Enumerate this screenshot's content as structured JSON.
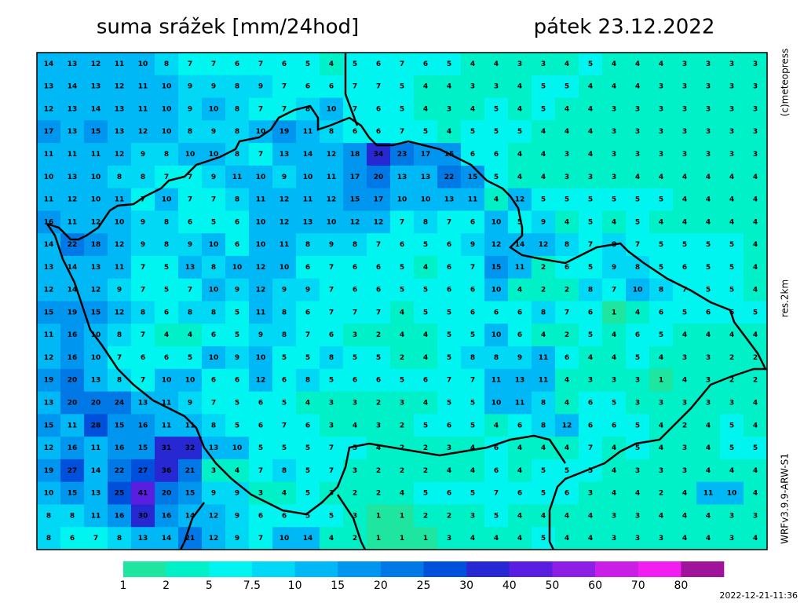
{
  "header": {
    "title": "suma srážek [mm/24hod]",
    "date": "pátek 23.12.2022"
  },
  "side_labels": {
    "credit": "(c)meteopress",
    "resolution": "res.2km",
    "model": "WRFv3.9.9-ARW-S1"
  },
  "grid": {
    "rows": [
      [
        14,
        13,
        12,
        11,
        10,
        8,
        7,
        7,
        6,
        7,
        6,
        5,
        4,
        5,
        6,
        7,
        6,
        5,
        4,
        4,
        3,
        3,
        4,
        5,
        4,
        4,
        4,
        3,
        3,
        3,
        3
      ],
      [
        13,
        14,
        13,
        12,
        11,
        10,
        9,
        9,
        8,
        9,
        7,
        6,
        6,
        7,
        7,
        5,
        4,
        4,
        3,
        3,
        4,
        5,
        5,
        4,
        4,
        4,
        3,
        3,
        3,
        3,
        3
      ],
      [
        12,
        13,
        14,
        13,
        11,
        10,
        9,
        10,
        8,
        7,
        7,
        8,
        10,
        7,
        6,
        5,
        4,
        3,
        4,
        5,
        4,
        5,
        4,
        4,
        3,
        3,
        3,
        3,
        3,
        3,
        3
      ],
      [
        17,
        13,
        15,
        13,
        12,
        10,
        8,
        9,
        8,
        10,
        19,
        11,
        8,
        6,
        6,
        7,
        5,
        4,
        5,
        5,
        5,
        4,
        4,
        4,
        3,
        3,
        3,
        3,
        3,
        3,
        3
      ],
      [
        11,
        11,
        11,
        12,
        9,
        8,
        10,
        10,
        8,
        7,
        13,
        14,
        12,
        18,
        34,
        23,
        17,
        15,
        6,
        6,
        4,
        4,
        3,
        4,
        3,
        3,
        3,
        3,
        3,
        3,
        3
      ],
      [
        10,
        13,
        10,
        8,
        8,
        7,
        7,
        9,
        11,
        10,
        9,
        10,
        11,
        17,
        20,
        13,
        13,
        22,
        15,
        5,
        4,
        4,
        3,
        3,
        3,
        4,
        4,
        4,
        4,
        4,
        4
      ],
      [
        11,
        12,
        10,
        11,
        7,
        10,
        7,
        7,
        8,
        11,
        12,
        11,
        12,
        15,
        17,
        10,
        10,
        13,
        11,
        4,
        12,
        5,
        5,
        5,
        5,
        5,
        5,
        4,
        4,
        4,
        4
      ],
      [
        16,
        11,
        12,
        10,
        9,
        8,
        6,
        5,
        6,
        10,
        12,
        13,
        10,
        12,
        12,
        7,
        8,
        7,
        6,
        10,
        5,
        9,
        4,
        5,
        4,
        5,
        4,
        4,
        4,
        4,
        4
      ],
      [
        14,
        22,
        18,
        12,
        9,
        8,
        9,
        10,
        6,
        10,
        11,
        8,
        9,
        8,
        7,
        6,
        5,
        6,
        9,
        12,
        14,
        12,
        8,
        7,
        8,
        7,
        5,
        5,
        5,
        5,
        4
      ],
      [
        13,
        14,
        13,
        11,
        7,
        5,
        13,
        8,
        10,
        12,
        10,
        6,
        7,
        6,
        6,
        5,
        4,
        6,
        7,
        15,
        11,
        2,
        6,
        5,
        9,
        8,
        5,
        6,
        5,
        5,
        4
      ],
      [
        12,
        14,
        12,
        9,
        7,
        5,
        7,
        10,
        9,
        12,
        9,
        9,
        7,
        6,
        6,
        5,
        5,
        6,
        6,
        10,
        4,
        2,
        2,
        8,
        7,
        10,
        8,
        7,
        5,
        5,
        4
      ],
      [
        15,
        19,
        15,
        12,
        8,
        6,
        8,
        8,
        5,
        11,
        8,
        6,
        7,
        7,
        7,
        4,
        5,
        5,
        6,
        6,
        6,
        8,
        7,
        6,
        1,
        4,
        6,
        5,
        6,
        6,
        5
      ],
      [
        11,
        16,
        10,
        8,
        7,
        4,
        4,
        6,
        5,
        9,
        8,
        7,
        6,
        3,
        2,
        4,
        4,
        5,
        5,
        10,
        6,
        4,
        2,
        5,
        4,
        6,
        5,
        4,
        4,
        4,
        4
      ],
      [
        12,
        16,
        10,
        7,
        6,
        6,
        5,
        10,
        9,
        10,
        5,
        5,
        8,
        5,
        5,
        2,
        4,
        5,
        8,
        8,
        9,
        11,
        6,
        4,
        4,
        5,
        4,
        3,
        3,
        2,
        2
      ],
      [
        19,
        20,
        13,
        8,
        7,
        10,
        10,
        6,
        6,
        12,
        6,
        8,
        5,
        6,
        6,
        5,
        6,
        7,
        7,
        11,
        13,
        11,
        4,
        3,
        3,
        3,
        1,
        4,
        3,
        2,
        2
      ],
      [
        13,
        20,
        20,
        24,
        13,
        11,
        9,
        7,
        5,
        6,
        5,
        4,
        3,
        3,
        2,
        3,
        4,
        5,
        5,
        10,
        11,
        8,
        4,
        6,
        5,
        3,
        3,
        3,
        3,
        3,
        4
      ],
      [
        15,
        11,
        28,
        15,
        16,
        11,
        11,
        8,
        5,
        6,
        7,
        6,
        3,
        4,
        3,
        2,
        5,
        6,
        5,
        4,
        6,
        8,
        12,
        6,
        6,
        5,
        4,
        2,
        4,
        5,
        4
      ],
      [
        12,
        16,
        11,
        16,
        15,
        31,
        32,
        13,
        10,
        5,
        5,
        5,
        7,
        5,
        4,
        2,
        2,
        3,
        4,
        6,
        4,
        4,
        4,
        7,
        4,
        5,
        4,
        3,
        4,
        5,
        5
      ],
      [
        19,
        27,
        14,
        22,
        27,
        36,
        21,
        3,
        4,
        7,
        8,
        5,
        7,
        3,
        2,
        2,
        2,
        4,
        4,
        6,
        4,
        5,
        5,
        5,
        4,
        3,
        3,
        3,
        4,
        4,
        4
      ],
      [
        10,
        15,
        13,
        25,
        41,
        20,
        15,
        9,
        9,
        3,
        4,
        5,
        3,
        2,
        2,
        4,
        5,
        6,
        5,
        7,
        6,
        5,
        6,
        3,
        4,
        4,
        2,
        4,
        11,
        10,
        4
      ],
      [
        8,
        8,
        11,
        16,
        30,
        16,
        14,
        12,
        9,
        6,
        6,
        5,
        5,
        3,
        1,
        1,
        2,
        2,
        3,
        5,
        4,
        4,
        4,
        4,
        3,
        3,
        4,
        4,
        4,
        3,
        3
      ],
      [
        8,
        6,
        7,
        8,
        13,
        14,
        21,
        12,
        9,
        7,
        10,
        14,
        4,
        2,
        1,
        1,
        1,
        3,
        4,
        4,
        4,
        5,
        4,
        4,
        3,
        3,
        3,
        4,
        4,
        3,
        4
      ]
    ]
  },
  "legend": {
    "thresholds": [
      1,
      2,
      5,
      7.5,
      10,
      15,
      20,
      25,
      30,
      40,
      50,
      60,
      70,
      80
    ],
    "colors": [
      "#1ee6a0",
      "#00f0c8",
      "#00f5f0",
      "#00d8f5",
      "#00b8f5",
      "#0096f0",
      "#0078e6",
      "#0050dc",
      "#2828d2",
      "#5a1ee1",
      "#8c1ee6",
      "#c81ee6",
      "#f01ef0",
      "#a0149b"
    ]
  },
  "timestamp": "2022-12-21-11:36"
}
